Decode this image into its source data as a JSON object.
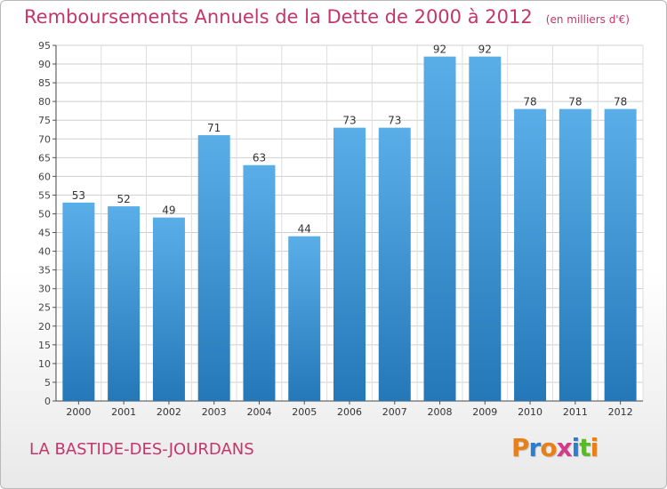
{
  "header": {
    "title": "Remboursements Annuels de la Dette de 2000 à 2012",
    "unit": "(en milliers d'€)"
  },
  "footer": {
    "commune": "LA BASTIDE-DES-JOURDANS",
    "logo_text": "Proxiti"
  },
  "colors": {
    "title": "#c4366a",
    "bar_top": "#5aaee8",
    "bar_bottom": "#2478b8",
    "logo": [
      "#e8801a",
      "#2a7fd0",
      "#e8801a",
      "#d23a8a",
      "#2a7fd0",
      "#5ab82a",
      "#e8801a"
    ]
  },
  "chart_data": {
    "type": "bar",
    "title": "Remboursements Annuels de la Dette de 2000 à 2012",
    "categories": [
      "2000",
      "2001",
      "2002",
      "2003",
      "2004",
      "2005",
      "2006",
      "2007",
      "2008",
      "2009",
      "2010",
      "2011",
      "2012"
    ],
    "values": [
      53,
      52,
      49,
      71,
      63,
      44,
      73,
      73,
      92,
      92,
      78,
      78,
      78
    ],
    "ylim": [
      0,
      95
    ],
    "ytick_step": 5,
    "grid": true,
    "data_labels": true
  }
}
